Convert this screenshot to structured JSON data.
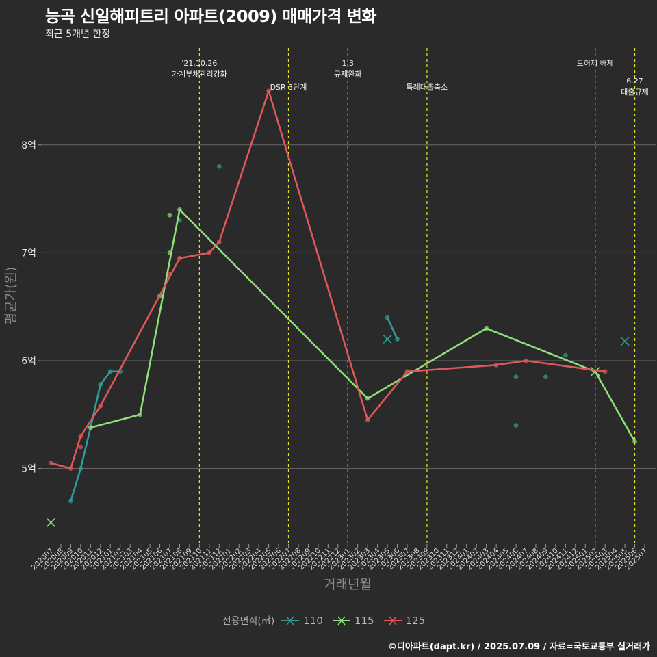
{
  "title": "능곡 신일해피트리 아파트(2009) 매매가격 변화",
  "subtitle": "최근 5개년 한정",
  "caption": "©디아파트(dapt.kr) / 2025.07.09 / 자료=국토교통부 실거래가",
  "colors": {
    "background": "#2a2a2a",
    "grid": "#6a6a6a",
    "event_line": "#e6e61e",
    "s110": "#2e9e9a",
    "s115": "#8ee07a",
    "s125": "#e0585a"
  },
  "chart_data": {
    "type": "line",
    "xlabel": "거래년월",
    "ylabel": "평균가(원)",
    "y_unit": "억",
    "ylim": [
      4.3,
      8.95
    ],
    "yticks": [
      5,
      6,
      7,
      8
    ],
    "ytick_labels": [
      "5억",
      "6억",
      "7억",
      "8억"
    ],
    "x": [
      "202007",
      "202008",
      "202009",
      "202010",
      "202011",
      "202012",
      "202101",
      "202102",
      "202103",
      "202104",
      "202105",
      "202106",
      "202107",
      "202108",
      "202109",
      "202110",
      "202111",
      "202112",
      "202201",
      "202202",
      "202203",
      "202204",
      "202205",
      "202206",
      "202207",
      "202208",
      "202209",
      "202210",
      "202211",
      "202212",
      "202301",
      "202302",
      "202303",
      "202304",
      "202305",
      "202306",
      "202307",
      "202308",
      "202309",
      "202310",
      "202311",
      "202312",
      "202401",
      "202402",
      "202403",
      "202404",
      "202405",
      "202406",
      "202407",
      "202408",
      "202409",
      "202410",
      "202411",
      "202412",
      "202501",
      "202502",
      "202503",
      "202504",
      "202505",
      "202506",
      "202507"
    ],
    "legend_title": "전용면적(㎡)",
    "events": [
      {
        "x": "202110",
        "label": "'21.10.26\n가계부채관리강화",
        "label_row": 0
      },
      {
        "x": "202207",
        "label": "DSR 3단계",
        "label_row": 1
      },
      {
        "x": "202301",
        "label": "1.3\n규제완화",
        "label_row": 0
      },
      {
        "x": "202309",
        "label": "특례대출축소",
        "label_row": 1
      },
      {
        "x": "202502",
        "label": "토허제 해제",
        "label_row": 0
      },
      {
        "x": "202506",
        "label": "6.27\n대출규제",
        "label_row": 2
      }
    ],
    "series": [
      {
        "name": "110",
        "color": "#2e9e9a",
        "line": [
          [
            "202009",
            4.7
          ],
          [
            "202010",
            5.0
          ],
          [
            "202011",
            5.38
          ],
          [
            "202012",
            5.78
          ],
          [
            "202101",
            5.9
          ],
          [
            "202102",
            5.9
          ]
        ],
        "line2": [
          [
            "202305",
            6.4
          ],
          [
            "202306",
            6.2
          ]
        ],
        "points": [
          [
            "202009",
            4.7
          ],
          [
            "202010",
            5.0
          ],
          [
            "202011",
            5.38
          ],
          [
            "202012",
            5.78
          ],
          [
            "202101",
            5.9
          ],
          [
            "202102",
            5.9
          ],
          [
            "202108",
            7.3
          ],
          [
            "202112",
            7.8
          ],
          [
            "202305",
            6.4
          ],
          [
            "202306",
            6.2
          ],
          [
            "202406",
            5.85
          ],
          [
            "202406",
            5.4
          ],
          [
            "202409",
            5.85
          ],
          [
            "202411",
            6.05
          ]
        ],
        "crosses": [
          [
            "202305",
            6.2
          ],
          [
            "202505",
            6.18
          ]
        ]
      },
      {
        "name": "115",
        "color": "#8ee07a",
        "line": [
          [
            "202011",
            5.38
          ],
          [
            "202104",
            5.5
          ],
          [
            "202108",
            7.4
          ],
          [
            "202303",
            5.65
          ],
          [
            "202403",
            6.3
          ],
          [
            "202502",
            5.9
          ],
          [
            "202506",
            5.25
          ]
        ],
        "points": [
          [
            "202011",
            5.38
          ],
          [
            "202104",
            5.5
          ],
          [
            "202106",
            6.6
          ],
          [
            "202107",
            7.35
          ],
          [
            "202107",
            7.0
          ],
          [
            "202108",
            7.4
          ],
          [
            "202303",
            5.65
          ],
          [
            "202403",
            6.3
          ],
          [
            "202506",
            5.25
          ]
        ],
        "crosses": [
          [
            "202007",
            4.5
          ],
          [
            "202502",
            5.9
          ]
        ]
      },
      {
        "name": "125",
        "color": "#e0585a",
        "line": [
          [
            "202007",
            5.05
          ],
          [
            "202009",
            5.0
          ],
          [
            "202010",
            5.3
          ],
          [
            "202012",
            5.58
          ],
          [
            "202108",
            6.95
          ],
          [
            "202111",
            7.0
          ],
          [
            "202112",
            7.1
          ],
          [
            "202205",
            8.5
          ],
          [
            "202303",
            5.45
          ],
          [
            "202307",
            5.9
          ],
          [
            "202404",
            5.96
          ],
          [
            "202407",
            6.0
          ],
          [
            "202503",
            5.9
          ]
        ],
        "points": [
          [
            "202007",
            5.05
          ],
          [
            "202009",
            5.0
          ],
          [
            "202010",
            5.3
          ],
          [
            "202010",
            5.2
          ],
          [
            "202012",
            5.58
          ],
          [
            "202107",
            6.8
          ],
          [
            "202108",
            6.95
          ],
          [
            "202111",
            7.0
          ],
          [
            "202112",
            7.1
          ],
          [
            "202205",
            8.5
          ],
          [
            "202303",
            5.45
          ],
          [
            "202307",
            5.9
          ],
          [
            "202404",
            5.96
          ],
          [
            "202407",
            6.0
          ],
          [
            "202503",
            5.9
          ]
        ],
        "crosses": []
      }
    ]
  }
}
